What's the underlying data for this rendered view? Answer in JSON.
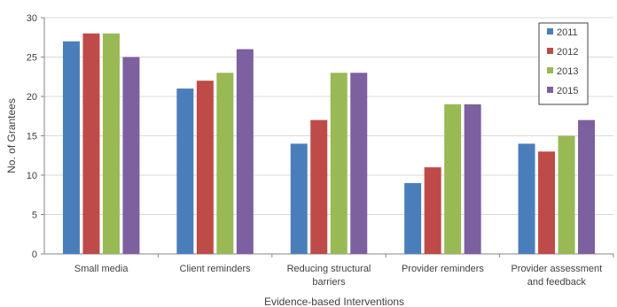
{
  "chart_data": {
    "type": "bar",
    "title": "",
    "xlabel": "Evidence-based Interventions",
    "ylabel": "No. of Grantees",
    "ylim": [
      0,
      30
    ],
    "yticks": [
      0,
      5,
      10,
      15,
      20,
      25,
      30
    ],
    "categories": [
      [
        "Small media"
      ],
      [
        "Client reminders"
      ],
      [
        "Reducing structural",
        "barriers"
      ],
      [
        "Provider reminders"
      ],
      [
        "Provider assessment",
        "and feedback"
      ]
    ],
    "series": [
      {
        "name": "2011",
        "color": "#4a7ebb",
        "values": [
          27,
          21,
          14,
          9,
          14
        ]
      },
      {
        "name": "2012",
        "color": "#be4b48",
        "values": [
          28,
          22,
          17,
          11,
          13
        ]
      },
      {
        "name": "2013",
        "color": "#98b954",
        "values": [
          28,
          23,
          23,
          19,
          15
        ]
      },
      {
        "name": "2015",
        "color": "#7d60a0",
        "values": [
          25,
          26,
          23,
          19,
          17
        ]
      }
    ],
    "grid": true,
    "legend_position": "top-right"
  }
}
